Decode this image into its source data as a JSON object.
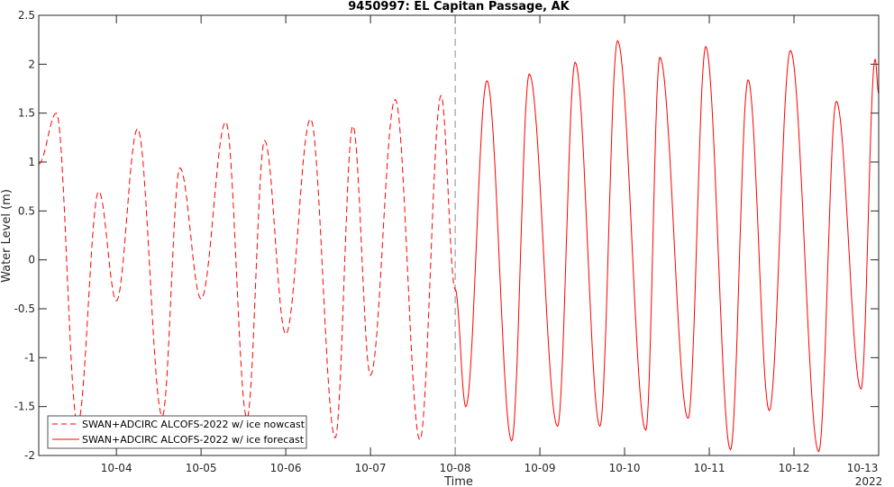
{
  "chart_data": {
    "type": "line",
    "title": "9450997: EL Capitan Passage, AK",
    "xlabel": "Time",
    "ylabel": "Water Level (m)",
    "year_label": "2022",
    "xlim": [
      "2022-10-03T02:00",
      "2022-10-13T00:00"
    ],
    "ylim": [
      -2,
      2.5
    ],
    "yticks": [
      "-2",
      "-1.5",
      "-1",
      "-0.5",
      "0",
      "0.5",
      "1",
      "1.5",
      "2",
      "2.5"
    ],
    "xticks": [
      {
        "date": "2022-10-04T00:00",
        "label": "10-04"
      },
      {
        "date": "2022-10-05T00:00",
        "label": "10-05"
      },
      {
        "date": "2022-10-06T00:00",
        "label": "10-06"
      },
      {
        "date": "2022-10-07T00:00",
        "label": "10-07"
      },
      {
        "date": "2022-10-08T00:00",
        "label": "10-08"
      },
      {
        "date": "2022-10-09T00:00",
        "label": "10-09"
      },
      {
        "date": "2022-10-10T00:00",
        "label": "10-10"
      },
      {
        "date": "2022-10-11T00:00",
        "label": "10-11"
      },
      {
        "date": "2022-10-12T00:00",
        "label": "10-12"
      },
      {
        "date": "2022-10-13T00:00",
        "label": "10-13"
      }
    ],
    "vertical_marker": "2022-10-08T00:00",
    "legend_position": "bottom-left",
    "series": [
      {
        "name": "SWAN+ADCIRC ALCOFS-2022 w/ ice nowcast",
        "style": "dashed",
        "color": "#ff0000",
        "extrema": [
          [
            "2022-10-03T02:00",
            0.98
          ],
          [
            "2022-10-03T07:00",
            1.5
          ],
          [
            "2022-10-03T13:00",
            -1.68
          ],
          [
            "2022-10-03T19:00",
            0.7
          ],
          [
            "2022-10-04T00:00",
            -0.42
          ],
          [
            "2022-10-04T06:00",
            1.34
          ],
          [
            "2022-10-04T13:00",
            -1.6
          ],
          [
            "2022-10-04T18:00",
            0.94
          ],
          [
            "2022-10-05T00:00",
            -0.4
          ],
          [
            "2022-10-05T07:00",
            1.41
          ],
          [
            "2022-10-05T13:00",
            -1.62
          ],
          [
            "2022-10-05T18:00",
            1.22
          ],
          [
            "2022-10-06T00:00",
            -0.76
          ],
          [
            "2022-10-06T07:00",
            1.44
          ],
          [
            "2022-10-06T14:00",
            -1.82
          ],
          [
            "2022-10-06T19:00",
            1.37
          ],
          [
            "2022-10-07T00:00",
            -1.18
          ],
          [
            "2022-10-07T07:00",
            1.64
          ],
          [
            "2022-10-07T14:00",
            -1.84
          ],
          [
            "2022-10-07T20:00",
            1.68
          ],
          [
            "2022-10-08T00:00",
            -0.3
          ]
        ]
      },
      {
        "name": "SWAN+ADCIRC ALCOFS-2022 w/ ice forecast",
        "style": "solid",
        "color": "#ff0000",
        "extrema": [
          [
            "2022-10-08T00:00",
            -0.3
          ],
          [
            "2022-10-08T03:00",
            -1.5
          ],
          [
            "2022-10-08T09:00",
            1.83
          ],
          [
            "2022-10-08T16:00",
            -1.85
          ],
          [
            "2022-10-08T21:00",
            1.9
          ],
          [
            "2022-10-09T05:00",
            -1.7
          ],
          [
            "2022-10-09T10:00",
            2.02
          ],
          [
            "2022-10-09T17:00",
            -1.7
          ],
          [
            "2022-10-09T22:00",
            2.24
          ],
          [
            "2022-10-10T06:00",
            -1.74
          ],
          [
            "2022-10-10T10:00",
            2.07
          ],
          [
            "2022-10-10T18:00",
            -1.62
          ],
          [
            "2022-10-10T23:00",
            2.18
          ],
          [
            "2022-10-11T06:00",
            -1.94
          ],
          [
            "2022-10-11T11:00",
            1.84
          ],
          [
            "2022-10-11T17:00",
            -1.54
          ],
          [
            "2022-10-11T23:00",
            2.14
          ],
          [
            "2022-10-12T07:00",
            -1.96
          ],
          [
            "2022-10-12T12:00",
            1.62
          ],
          [
            "2022-10-12T19:00",
            -1.32
          ],
          [
            "2022-10-12T23:00",
            2.05
          ],
          [
            "2022-10-13T00:00",
            1.7
          ]
        ]
      }
    ]
  }
}
